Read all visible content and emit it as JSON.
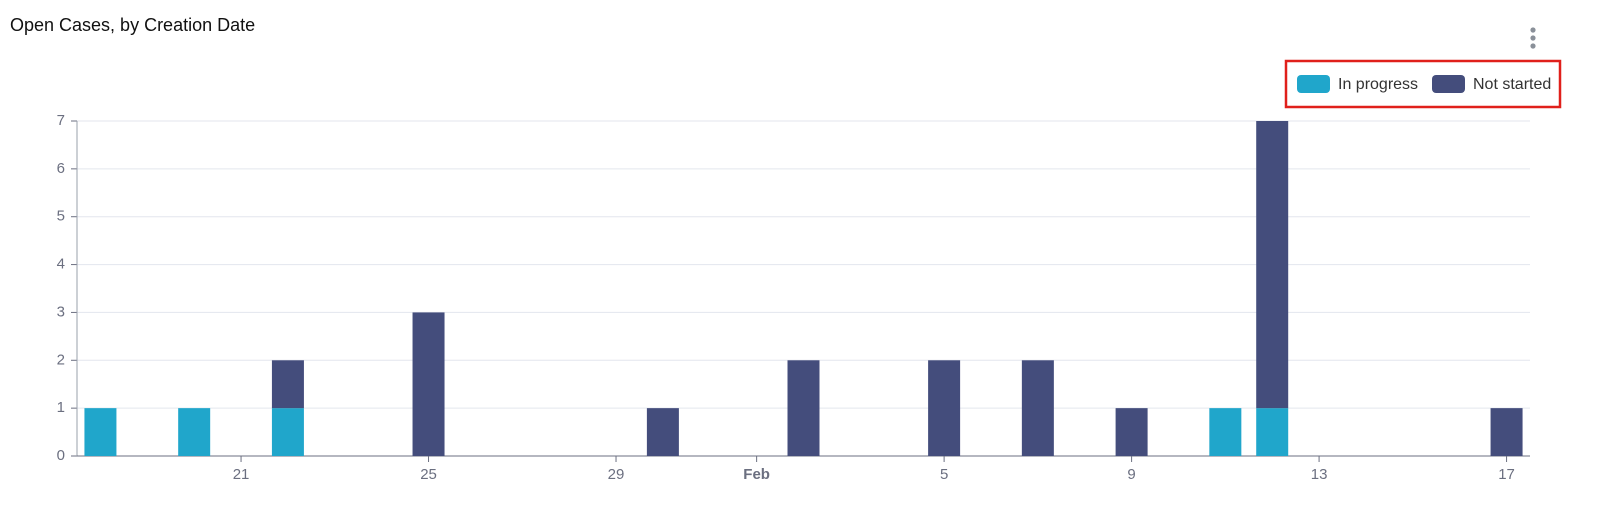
{
  "chart_data": {
    "type": "stacked-bar",
    "title": "Open Cases, by Creation Date",
    "categories": [
      null,
      null,
      null,
      "21",
      null,
      null,
      null,
      "25",
      null,
      null,
      null,
      "29",
      null,
      null,
      "Feb",
      null,
      null,
      null,
      "5",
      null,
      null,
      null,
      "9",
      null,
      null,
      null,
      "13",
      null,
      null,
      null,
      "17"
    ],
    "series": [
      {
        "name": "In progress",
        "color": "#20a6cb",
        "values": [
          1,
          0,
          1,
          0,
          1,
          0,
          0,
          0,
          0,
          0,
          0,
          0,
          0,
          0,
          0,
          0,
          0,
          0,
          0,
          0,
          0,
          0,
          0,
          0,
          1,
          1,
          0,
          0,
          0,
          0,
          0
        ]
      },
      {
        "name": "Not started",
        "color": "#444d7c",
        "values": [
          0,
          0,
          0,
          0,
          1,
          0,
          0,
          3,
          0,
          0,
          0,
          0,
          1,
          0,
          0,
          2,
          0,
          0,
          2,
          0,
          2,
          0,
          1,
          0,
          0,
          6,
          0,
          0,
          0,
          0,
          1
        ]
      }
    ],
    "ylim": [
      0,
      7
    ],
    "yticks": [
      0,
      1,
      2,
      3,
      4,
      5,
      6,
      7
    ],
    "grid": true,
    "legend": "top-right"
  }
}
